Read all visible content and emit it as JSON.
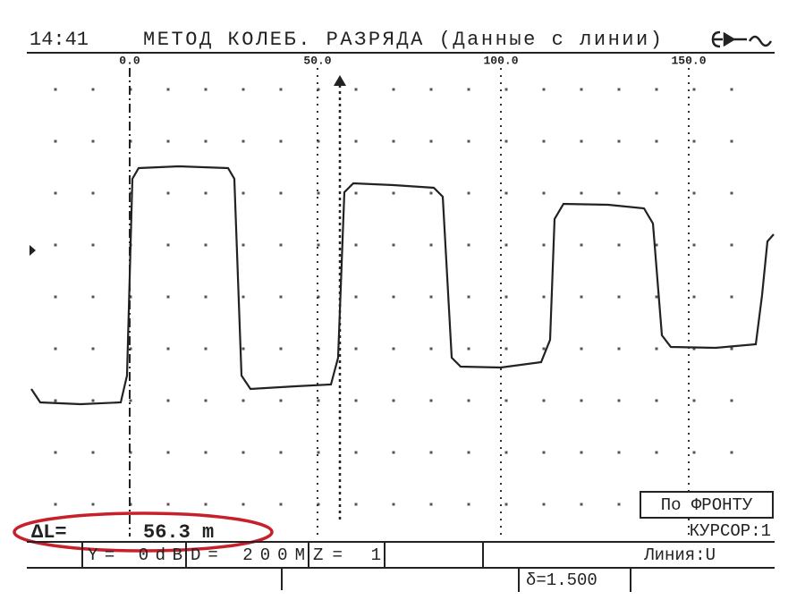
{
  "header": {
    "time": "14:41",
    "title": "МЕТОД КОЛЕБ. РАЗРЯДА (Данные с линии)"
  },
  "scale": {
    "labels": [
      "0.0",
      "50.0",
      "100.0",
      "150.0"
    ]
  },
  "mode": "По ФРОНТУ",
  "cursor": "КУРСОР:1",
  "delta": {
    "label": "ΔL=",
    "value": "56.3 m"
  },
  "status": {
    "gain": "Y=  0dB",
    "range": "D=  200M",
    "zoom": "Z=  1",
    "line": "Линия:U",
    "factor": "δ=1.500"
  }
}
